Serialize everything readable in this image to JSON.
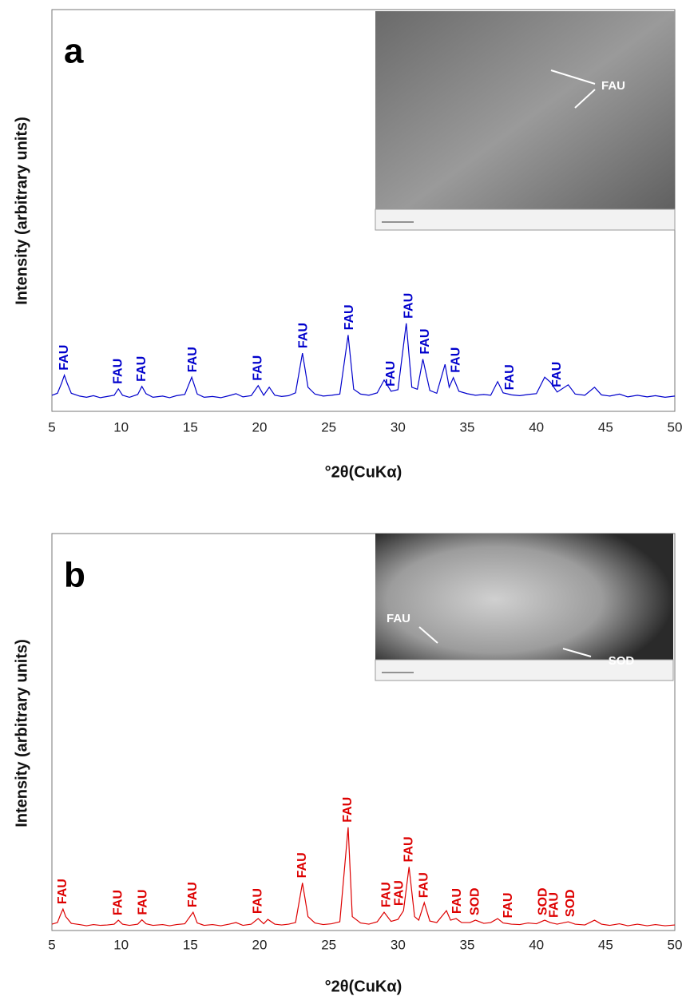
{
  "chart_data": [
    {
      "type": "line",
      "panel": "a",
      "xlabel": "°2θ(CuKα)",
      "ylabel": "Intensity (arbitrary units)",
      "color": "#0000cc",
      "xlim": [
        5,
        50
      ],
      "xticks": [
        5,
        10,
        15,
        20,
        25,
        30,
        35,
        40,
        45,
        50
      ],
      "ylim": [
        0,
        100
      ],
      "x": [
        5,
        5.4,
        5.7,
        5.9,
        6.1,
        6.4,
        7,
        7.5,
        8,
        8.5,
        9,
        9.5,
        9.8,
        10.1,
        10.6,
        11.2,
        11.5,
        11.8,
        12.3,
        13,
        13.5,
        14,
        14.6,
        15.1,
        15.5,
        16,
        16.6,
        17.2,
        17.8,
        18.3,
        18.8,
        19.4,
        19.9,
        20.3,
        20.7,
        21.1,
        21.6,
        22.1,
        22.6,
        23.1,
        23.5,
        24,
        24.6,
        25.2,
        25.8,
        26.4,
        26.8,
        27.3,
        27.9,
        28.5,
        29,
        29.5,
        30,
        30.6,
        31,
        31.4,
        31.8,
        32.3,
        32.8,
        33.4,
        33.7,
        34,
        34.4,
        35,
        35.6,
        36.2,
        36.7,
        37.2,
        37.6,
        38.2,
        38.8,
        39.4,
        40,
        40.6,
        41,
        41.5,
        42.3,
        42.8,
        43.5,
        44.2,
        44.7,
        45.3,
        46,
        46.6,
        47.3,
        48,
        48.6,
        49.3,
        50
      ],
      "values": [
        4.0,
        4.5,
        7,
        9,
        7,
        4.5,
        3.8,
        3.5,
        3.9,
        3.4,
        3.7,
        4.0,
        5.6,
        4.0,
        3.5,
        4.2,
        6.2,
        4.4,
        3.5,
        3.8,
        3.4,
        3.9,
        4.2,
        8.5,
        4.3,
        3.5,
        3.7,
        3.4,
        3.9,
        4.4,
        3.6,
        3.9,
        6.4,
        4.0,
        6.0,
        4.0,
        3.7,
        3.9,
        4.6,
        14.5,
        6.0,
        4.3,
        3.8,
        4.0,
        4.3,
        19.0,
        5.5,
        4.3,
        4.0,
        4.6,
        7.8,
        5.0,
        5.4,
        21.9,
        6,
        5.5,
        13,
        5.2,
        4.5,
        11.7,
        6,
        8.4,
        5,
        4.4,
        4.0,
        4.2,
        4.0,
        7.4,
        4.6,
        4.1,
        3.9,
        4.2,
        4.4,
        8.5,
        7.3,
        4.8,
        6.6,
        4.3,
        4.0,
        6.0,
        4.1,
        3.8,
        4.3,
        3.6,
        4.0,
        3.6,
        3.9,
        3.5,
        3.8
      ],
      "annotations": [
        {
          "text": "FAU",
          "x": 5.9
        },
        {
          "text": "FAU",
          "x": 9.8
        },
        {
          "text": "FAU",
          "x": 11.5
        },
        {
          "text": "FAU",
          "x": 15.2
        },
        {
          "text": "FAU",
          "x": 19.9
        },
        {
          "text": "FAU",
          "x": 23.2
        },
        {
          "text": "FAU",
          "x": 26.5
        },
        {
          "text": "FAU",
          "x": 29.5
        },
        {
          "text": "FAU",
          "x": 30.8
        },
        {
          "text": "FAU",
          "x": 32
        },
        {
          "text": "FAU",
          "x": 34.2
        },
        {
          "text": "FAU",
          "x": 38.1
        },
        {
          "text": "FAU",
          "x": 41.5
        }
      ],
      "inset_labels": [
        "FAU"
      ]
    },
    {
      "type": "line",
      "panel": "b",
      "xlabel": "°2θ(CuKα)",
      "ylabel": "Intensity (arbitrary units)",
      "color": "#dd0000",
      "xlim": [
        5,
        50
      ],
      "xticks": [
        5,
        10,
        15,
        20,
        25,
        30,
        35,
        40,
        45,
        50
      ],
      "ylim": [
        0,
        100
      ],
      "x": [
        5,
        5.4,
        5.6,
        5.8,
        6.0,
        6.4,
        7,
        7.5,
        8,
        8.5,
        9,
        9.5,
        9.8,
        10.1,
        10.6,
        11.2,
        11.5,
        11.8,
        12.3,
        13,
        13.5,
        14,
        14.6,
        15.2,
        15.5,
        16,
        16.6,
        17.2,
        17.8,
        18.3,
        18.8,
        19.4,
        19.9,
        20.3,
        20.6,
        21.1,
        21.6,
        22.1,
        22.6,
        23.1,
        23.5,
        24,
        24.6,
        25.2,
        25.8,
        26.4,
        26.7,
        27.3,
        27.9,
        28.5,
        29,
        29.5,
        30,
        30.4,
        30.8,
        31.2,
        31.5,
        31.9,
        32.3,
        32.8,
        33.5,
        33.8,
        34.2,
        34.6,
        35.2,
        35.6,
        36.2,
        36.7,
        37.2,
        37.6,
        38.2,
        38.8,
        39.4,
        40,
        40.6,
        41,
        41.5,
        42.3,
        42.8,
        43.5,
        44.2,
        44.7,
        45.3,
        46,
        46.6,
        47.3,
        48,
        48.6,
        49.3,
        50
      ],
      "values": [
        1.6,
        2.0,
        3.8,
        5.4,
        3.5,
        1.8,
        1.5,
        1.2,
        1.5,
        1.3,
        1.4,
        1.6,
        2.6,
        1.6,
        1.3,
        1.6,
        2.7,
        1.7,
        1.3,
        1.5,
        1.2,
        1.5,
        1.7,
        4.6,
        1.9,
        1.3,
        1.5,
        1.2,
        1.6,
        2.0,
        1.3,
        1.6,
        3.0,
        1.7,
        2.8,
        1.6,
        1.4,
        1.6,
        2.0,
        12,
        3.5,
        1.9,
        1.5,
        1.7,
        2.2,
        26,
        3.5,
        1.9,
        1.6,
        2.2,
        4.6,
        2.3,
        2.8,
        5,
        16,
        3.5,
        2.6,
        7,
        2.4,
        2.0,
        5.0,
        2.6,
        3.0,
        2.0,
        2.0,
        2.6,
        1.8,
        2.0,
        3.0,
        1.9,
        1.6,
        1.5,
        1.9,
        1.7,
        2.6,
        2.0,
        1.6,
        2.2,
        1.6,
        1.4,
        2.6,
        1.6,
        1.3,
        1.7,
        1.2,
        1.6,
        1.2,
        1.5,
        1.2,
        1.4
      ],
      "annotations": [
        {
          "text": "FAU",
          "x": 5.8
        },
        {
          "text": "FAU",
          "x": 9.8
        },
        {
          "text": "FAU",
          "x": 11.6
        },
        {
          "text": "FAU",
          "x": 15.2
        },
        {
          "text": "FAU",
          "x": 19.9
        },
        {
          "text": "FAU",
          "x": 23.1
        },
        {
          "text": "FAU",
          "x": 26.4
        },
        {
          "text": "FAU",
          "x": 29.2
        },
        {
          "text": "FAU",
          "x": 30.1
        },
        {
          "text": "FAU",
          "x": 30.8
        },
        {
          "text": "FAU",
          "x": 31.9
        },
        {
          "text": "FAU",
          "x": 34.3
        },
        {
          "text": "SOD",
          "x": 35.6
        },
        {
          "text": "FAU",
          "x": 38
        },
        {
          "text": "SOD",
          "x": 40.5
        },
        {
          "text": "FAU",
          "x": 41.3
        },
        {
          "text": "SOD",
          "x": 42.5
        }
      ],
      "inset_labels": [
        "FAU",
        "SOD"
      ]
    }
  ]
}
